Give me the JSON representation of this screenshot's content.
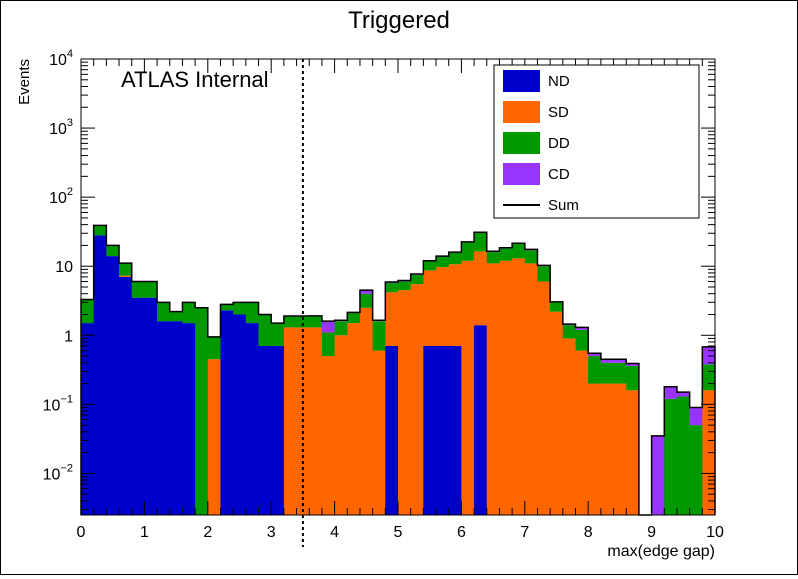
{
  "chart_data": {
    "type": "bar",
    "stacked": true,
    "title": "Triggered",
    "xlabel": "max(edge gap)",
    "ylabel": "Events",
    "annotation": "ATLAS Internal",
    "xlim": [
      0,
      10
    ],
    "ylim": [
      0.0025,
      10000
    ],
    "log_y": true,
    "bin_width": 0.2,
    "x_ticks": [
      "0",
      "1",
      "2",
      "3",
      "4",
      "5",
      "6",
      "7",
      "8",
      "9",
      "10"
    ],
    "y_ticks": [
      {
        "base": "10",
        "exp": "−2",
        "value": 0.01
      },
      {
        "base": "10",
        "exp": "−1",
        "value": 0.1
      },
      {
        "base": "1",
        "exp": "",
        "value": 1
      },
      {
        "base": "10",
        "exp": "",
        "value": 10
      },
      {
        "base": "10",
        "exp": "2",
        "value": 100
      },
      {
        "base": "10",
        "exp": "3",
        "value": 1000
      },
      {
        "base": "10",
        "exp": "4",
        "value": 10000
      }
    ],
    "cut_line_x": 3.5,
    "legend_position": "top-right",
    "legend": [
      {
        "label": "ND",
        "color": "#0000cc",
        "type": "box"
      },
      {
        "label": "SD",
        "color": "#ff6600",
        "type": "box"
      },
      {
        "label": "DD",
        "color": "#009900",
        "type": "box"
      },
      {
        "label": "CD",
        "color": "#9933ff",
        "type": "box"
      },
      {
        "label": "Sum",
        "color": "#000000",
        "type": "line"
      }
    ],
    "bins_x0": [
      0.0,
      0.2,
      0.4,
      0.6,
      0.8,
      1.0,
      1.2,
      1.4,
      1.6,
      1.8,
      2.0,
      2.2,
      2.4,
      2.6,
      2.8,
      3.0,
      3.2,
      3.4,
      3.6,
      3.8,
      4.0,
      4.2,
      4.4,
      4.6,
      4.8,
      5.0,
      5.2,
      5.4,
      5.6,
      5.8,
      6.0,
      6.2,
      6.4,
      6.6,
      6.8,
      7.0,
      7.2,
      7.4,
      7.6,
      7.8,
      8.0,
      8.2,
      8.4,
      8.6,
      8.8,
      9.0,
      9.2,
      9.4,
      9.6,
      9.8
    ],
    "series": [
      {
        "name": "ND",
        "color": "#0000cc",
        "values": [
          1.5,
          28,
          14,
          7,
          3.5,
          3.5,
          1.6,
          1.6,
          1.5,
          0,
          0,
          2.3,
          2.0,
          1.5,
          0.7,
          0.7,
          0,
          0,
          0,
          0,
          0,
          0,
          0,
          0,
          0.7,
          0,
          0,
          0.7,
          0.7,
          0.7,
          0,
          1.4,
          0,
          0,
          0,
          0,
          0,
          0,
          0,
          0,
          0,
          0,
          0,
          0,
          0,
          0,
          0,
          0,
          0,
          0
        ]
      },
      {
        "name": "SD",
        "color": "#ff6600",
        "values": [
          0,
          0,
          0,
          0.3,
          0,
          0,
          0,
          0,
          0,
          0,
          0.45,
          0,
          0,
          0,
          0,
          0,
          1.3,
          1.3,
          1.3,
          0.5,
          1.0,
          1.5,
          2.5,
          0.6,
          3.5,
          4.5,
          5.5,
          8,
          9.0,
          10.0,
          12.0,
          15.0,
          11.0,
          12.0,
          13.0,
          11.0,
          6.0,
          2.2,
          0.9,
          0.6,
          0.2,
          0.2,
          0.2,
          0.16,
          0,
          0,
          0,
          0,
          0,
          0.16
        ]
      },
      {
        "name": "DD",
        "color": "#009900",
        "values": [
          1.8,
          11,
          6,
          3.8,
          2.5,
          2.5,
          1.4,
          0.6,
          1.5,
          2.5,
          0.5,
          0.5,
          1.0,
          1.5,
          1.3,
          0.8,
          0.6,
          0.6,
          0.6,
          0.6,
          0.6,
          0.6,
          1.5,
          1.0,
          1.5,
          1.5,
          2.0,
          3.0,
          4.0,
          5.0,
          10.0,
          14.0,
          5.0,
          6.0,
          8.0,
          6.0,
          4.0,
          0.8,
          0.5,
          0.6,
          0.3,
          0.2,
          0.2,
          0.2,
          0,
          0,
          0.12,
          0.13,
          0.05,
          0.22
        ]
      },
      {
        "name": "CD",
        "color": "#9933ff",
        "values": [
          0,
          0,
          0,
          0,
          0,
          0,
          0,
          0,
          0,
          0,
          0,
          0,
          0,
          0,
          0,
          0,
          0,
          0,
          0.01,
          0.5,
          0.05,
          0.05,
          0.5,
          0.05,
          0.2,
          0.2,
          0.2,
          0.3,
          0.3,
          0.3,
          0.5,
          0.6,
          0.5,
          0.5,
          0.5,
          0.5,
          0.3,
          0.05,
          0.05,
          0.1,
          0.05,
          0.05,
          0.05,
          0.03,
          0,
          0.035,
          0.06,
          0.02,
          0.04,
          0.3
        ]
      }
    ]
  }
}
